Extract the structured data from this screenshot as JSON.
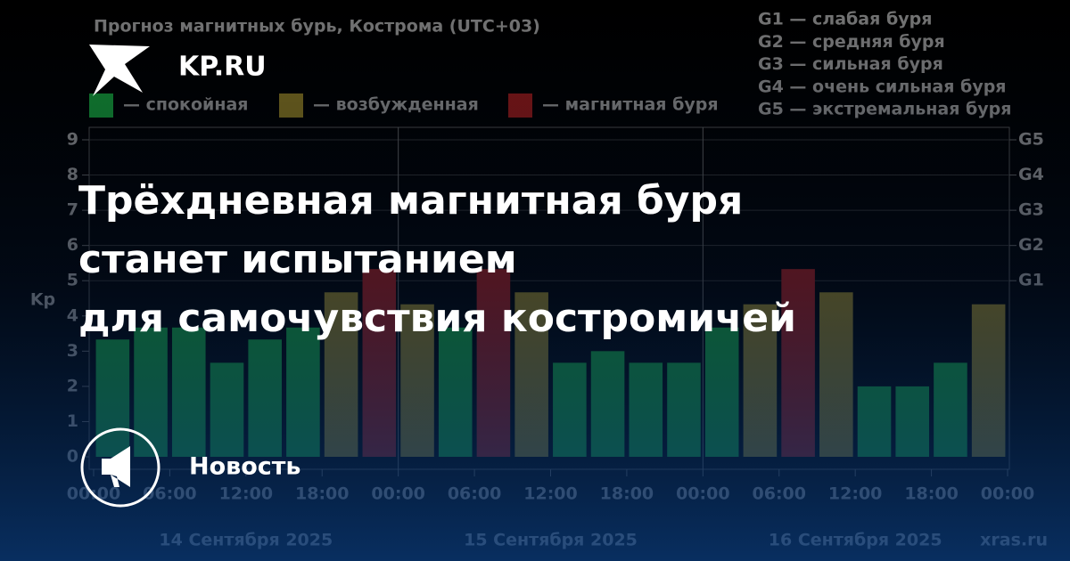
{
  "brand": "KP.RU",
  "headline": [
    "Трёхдневная магнитная буря",
    "станет испытанием",
    "для самочувствия костромичей"
  ],
  "badge": "Новость",
  "chart_data": {
    "type": "bar",
    "title": "Прогноз магнитных бурь, Кострома (UTC+03)",
    "legend": [
      {
        "name": "— спокойная",
        "color": "#16a03a"
      },
      {
        "name": "— возбужденная",
        "color": "#8c7a22"
      },
      {
        "name": "— магнитная буря",
        "color": "#9a1a1a"
      }
    ],
    "g_scale": [
      "G1 — слабая буря",
      "G2 — средняя буря",
      "G3 — сильная буря",
      "G4 — очень сильная буря",
      "G5 — экстремальная буря"
    ],
    "ylabel": "Kp",
    "x": [
      1.5,
      4.5,
      7.5,
      10.5,
      13.5,
      16.5,
      19.5,
      22.5,
      25.5,
      28.5,
      31.5,
      34.5,
      37.5,
      40.5,
      43.5,
      46.5,
      49.5,
      52.5,
      55.5,
      58.5,
      61.5,
      64.5,
      67.5,
      70.5
    ],
    "values": [
      3.33,
      3.67,
      3.67,
      2.67,
      3.33,
      3.67,
      4.67,
      5.33,
      4.33,
      3.67,
      5.33,
      4.67,
      2.67,
      3,
      2.67,
      2.67,
      3.67,
      4.33,
      5.33,
      4.67,
      2,
      2,
      2.67,
      4.33
    ],
    "colors": [
      "#16a03a",
      "#16a03a",
      "#16a03a",
      "#16a03a",
      "#16a03a",
      "#16a03a",
      "#8c7a22",
      "#9a1a1a",
      "#8c7a22",
      "#16a03a",
      "#9a1a1a",
      "#8c7a22",
      "#16a03a",
      "#16a03a",
      "#16a03a",
      "#16a03a",
      "#16a03a",
      "#8c7a22",
      "#9a1a1a",
      "#8c7a22",
      "#16a03a",
      "#16a03a",
      "#16a03a",
      "#8c7a22"
    ],
    "xlim": [
      0,
      72
    ],
    "xticks": [
      {
        "value": 0,
        "label": "00:00"
      },
      {
        "value": 6,
        "label": "06:00"
      },
      {
        "value": 12,
        "label": "12:00"
      },
      {
        "value": 18,
        "label": "18:00"
      },
      {
        "value": 24,
        "label": "00:00"
      },
      {
        "value": 30,
        "label": "06:00"
      },
      {
        "value": 36,
        "label": "12:00"
      },
      {
        "value": 42,
        "label": "18:00"
      },
      {
        "value": 48,
        "label": "00:00"
      },
      {
        "value": 54,
        "label": "06:00"
      },
      {
        "value": 60,
        "label": "12:00"
      },
      {
        "value": 66,
        "label": "18:00"
      },
      {
        "value": 72,
        "label": "00:00"
      }
    ],
    "days": [
      "14 Сентября 2025",
      "15 Сентября 2025",
      "16 Сентября 2025"
    ],
    "ylim": [
      0,
      9
    ],
    "yticks": [
      0,
      1,
      2,
      3,
      4,
      5,
      6,
      7,
      8,
      9
    ],
    "y2lim": [
      0,
      9
    ],
    "y2ticks": [
      {
        "value": 5,
        "label": "G1"
      },
      {
        "value": 6,
        "label": "G2"
      },
      {
        "value": 7,
        "label": "G3"
      },
      {
        "value": 8,
        "label": "G4"
      },
      {
        "value": 9,
        "label": "G5"
      }
    ],
    "grid": true,
    "source": "xras.ru"
  }
}
